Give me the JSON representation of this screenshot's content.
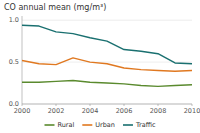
{
  "chart_data": {
    "type": "line",
    "title": "CO annual mean (mg/m³)",
    "x": [
      2000,
      2001,
      2002,
      2003,
      2004,
      2005,
      2006,
      2007,
      2008,
      2009,
      2010
    ],
    "series": [
      {
        "name": "Rural",
        "color": "#5a8a2e",
        "values": [
          0.26,
          0.26,
          0.27,
          0.28,
          0.26,
          0.25,
          0.24,
          0.22,
          0.21,
          0.22,
          0.23
        ]
      },
      {
        "name": "Urban",
        "color": "#e07820",
        "values": [
          0.52,
          0.48,
          0.47,
          0.55,
          0.5,
          0.48,
          0.43,
          0.41,
          0.4,
          0.39,
          0.4
        ]
      },
      {
        "name": "Traffic",
        "color": "#1a7070",
        "values": [
          0.94,
          0.93,
          0.86,
          0.84,
          0.79,
          0.75,
          0.65,
          0.63,
          0.6,
          0.49,
          0.48
        ]
      }
    ],
    "xlim": [
      2000,
      2010
    ],
    "ylim": [
      0.0,
      1.05
    ],
    "xticks": [
      2000,
      2002,
      2004,
      2006,
      2008,
      2010
    ],
    "yticks": [
      {
        "value": 0.0,
        "label": "0.0"
      },
      {
        "value": 0.5,
        "label": "0.5"
      },
      {
        "value": 1.0,
        "label": "1.0"
      }
    ],
    "grid": true,
    "legend": "bottom"
  }
}
